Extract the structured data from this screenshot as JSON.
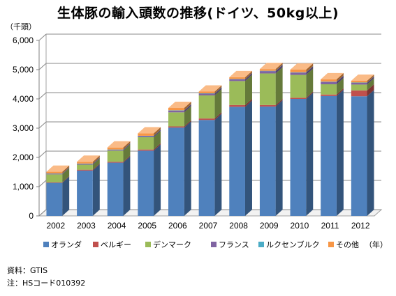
{
  "chart_data": {
    "type": "bar",
    "stacked": true,
    "title": "生体豚の輸入頭数の推移(ドイツ、50kg以上)",
    "unit_label": "（千頭）",
    "x_unit_label": "（年）",
    "categories": [
      "2002",
      "2003",
      "2004",
      "2005",
      "2006",
      "2007",
      "2008",
      "2009",
      "2010",
      "2011",
      "2012"
    ],
    "ylim": [
      0,
      6000
    ],
    "yticks": [
      "0",
      "1,000",
      "2,000",
      "3,000",
      "4,000",
      "5,000",
      "6,000"
    ],
    "ytick_values": [
      0,
      1000,
      2000,
      3000,
      4000,
      5000,
      6000
    ],
    "grid": true,
    "legend_position": "bottom",
    "series": [
      {
        "name": "オランダ",
        "color": "#4f81bd",
        "values": [
          1130,
          1550,
          1820,
          2230,
          3020,
          3280,
          3730,
          3740,
          4000,
          4100,
          4090
        ]
      },
      {
        "name": "ベルギー",
        "color": "#c0504d",
        "values": [
          20,
          30,
          30,
          40,
          40,
          50,
          60,
          50,
          40,
          50,
          200
        ]
      },
      {
        "name": "デンマーク",
        "color": "#9bbb59",
        "values": [
          270,
          170,
          380,
          420,
          480,
          790,
          820,
          1080,
          780,
          350,
          200
        ]
      },
      {
        "name": "フランス",
        "color": "#8064a2",
        "values": [
          20,
          30,
          30,
          40,
          60,
          60,
          60,
          80,
          80,
          80,
          60
        ]
      },
      {
        "name": "ルクセンブルク",
        "color": "#4bacc6",
        "values": [
          10,
          10,
          10,
          10,
          10,
          10,
          10,
          10,
          10,
          10,
          10
        ]
      },
      {
        "name": "その他",
        "color": "#f79646",
        "values": [
          60,
          60,
          70,
          80,
          80,
          60,
          60,
          60,
          90,
          80,
          60
        ]
      }
    ]
  },
  "notes": {
    "source": "資料：GTIS",
    "note": "注：HSコード010392"
  }
}
